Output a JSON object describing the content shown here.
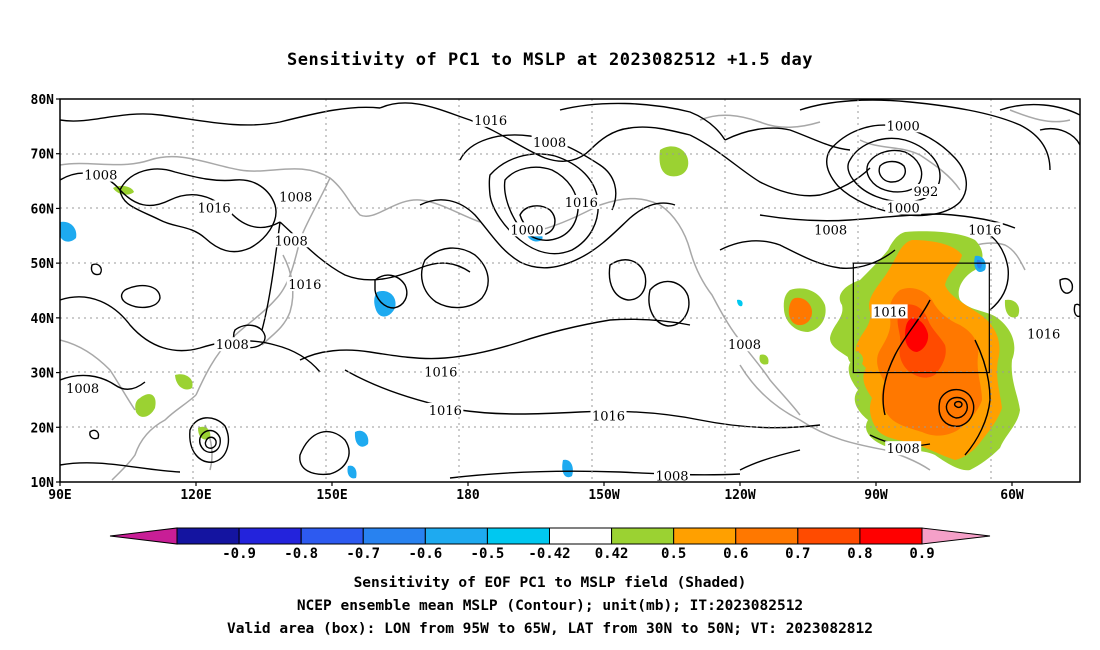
{
  "title": "Sensitivity of PC1 to MSLP at 2023082512 +1.5 day",
  "axes": {
    "lon_ticks": [
      "90E",
      "120E",
      "150E",
      "180",
      "150W",
      "120W",
      "90W",
      "60W"
    ],
    "lat_ticks": [
      "80N",
      "70N",
      "60N",
      "50N",
      "40N",
      "30N",
      "20N",
      "10N"
    ],
    "lon_range": [
      "90E",
      "45W"
    ],
    "lat_range": [
      "10N",
      "80N"
    ],
    "grid": "dotted"
  },
  "colorbar": {
    "labels": [
      "-0.9",
      "-0.8",
      "-0.7",
      "-0.6",
      "-0.5",
      "-0.42",
      "0.42",
      "0.5",
      "0.6",
      "0.7",
      "0.8",
      "0.9"
    ],
    "colors": [
      "#1414a0",
      "#2323dc",
      "#2d5af0",
      "#2882f0",
      "#1eaaf0",
      "#00c8f0",
      "#ffffff",
      "#9bd232",
      "#ffa000",
      "#ff7800",
      "#ff4b00",
      "#ff0000"
    ],
    "low_end_color": "#c81e96",
    "high_end_color": "#f5a0c8"
  },
  "contour_labels": [
    {
      "text": "1016",
      "lon": -175,
      "lat": 76
    },
    {
      "text": "1008",
      "lon": -162,
      "lat": 72
    },
    {
      "text": "1008",
      "lon": 99,
      "lat": 66
    },
    {
      "text": "1016",
      "lon": 124,
      "lat": 60
    },
    {
      "text": "1008",
      "lon": 142,
      "lat": 62
    },
    {
      "text": "1008",
      "lon": 141,
      "lat": 54
    },
    {
      "text": "1000",
      "lon": -167,
      "lat": 56
    },
    {
      "text": "1016",
      "lon": -155,
      "lat": 61
    },
    {
      "text": "1016",
      "lon": 144,
      "lat": 46
    },
    {
      "text": "1008",
      "lon": 128,
      "lat": 35
    },
    {
      "text": "1008",
      "lon": 95,
      "lat": 27
    },
    {
      "text": "1016",
      "lon": 174,
      "lat": 30
    },
    {
      "text": "1016",
      "lon": 175,
      "lat": 23
    },
    {
      "text": "1016",
      "lon": -149,
      "lat": 22
    },
    {
      "text": "1008",
      "lon": -135,
      "lat": 11
    },
    {
      "text": "1008",
      "lon": -119,
      "lat": 35
    },
    {
      "text": "1000",
      "lon": -84,
      "lat": 75
    },
    {
      "text": "992",
      "lon": -79,
      "lat": 63
    },
    {
      "text": "1000",
      "lon": -84,
      "lat": 60
    },
    {
      "text": "1008",
      "lon": -100,
      "lat": 56
    },
    {
      "text": "1016",
      "lon": -66,
      "lat": 56
    },
    {
      "text": "1016",
      "lon": -87,
      "lat": 41
    },
    {
      "text": "1016",
      "lon": -53,
      "lat": 37
    },
    {
      "text": "1008",
      "lon": -84,
      "lat": 16
    }
  ],
  "valid_box": {
    "lon": [
      -95,
      -65
    ],
    "lat": [
      30,
      50
    ]
  },
  "captions": [
    "Sensitivity of EOF PC1 to MSLP field (Shaded)",
    "NCEP ensemble mean MSLP (Contour); unit(mb); IT:2023082512",
    "Valid area (box): LON from 95W to 65W, LAT from 30N to 50N; VT: 2023082812"
  ]
}
